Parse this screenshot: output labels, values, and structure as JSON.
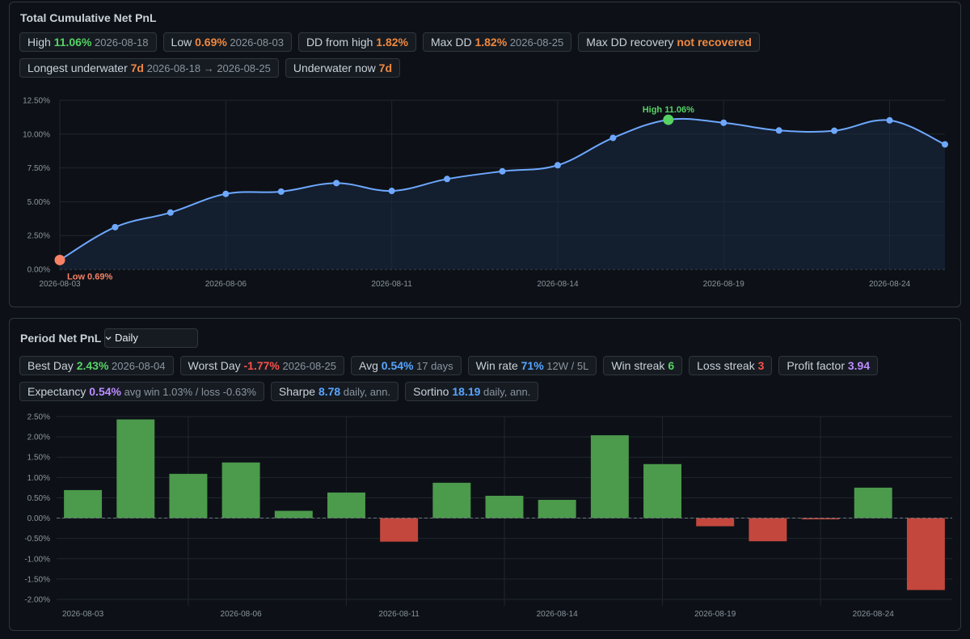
{
  "cumulative": {
    "title": "Total Cumulative Net PnL",
    "chips_row1": [
      {
        "label": "High",
        "value": "11.06%",
        "color": "g",
        "sub": "2026-08-18"
      },
      {
        "label": "Low",
        "value": "0.69%",
        "color": "o",
        "sub": "2026-08-03"
      },
      {
        "label": "DD from high",
        "value": "1.82%",
        "color": "o",
        "sub": ""
      },
      {
        "label": "Max DD",
        "value": "1.82%",
        "color": "o",
        "sub": "2026-08-25"
      },
      {
        "label": "Max DD recovery",
        "value": "not recovered",
        "color": "o",
        "sub": ""
      }
    ],
    "chips_row2": [
      {
        "label": "Longest underwater",
        "value": "7d",
        "color": "o",
        "sub": "2026-08-18 → 2026-08-25"
      },
      {
        "label": "Underwater now",
        "value": "7d",
        "color": "o",
        "sub": ""
      }
    ],
    "high_annotation": "High 11.06%",
    "low_annotation": "Low 0.69%"
  },
  "period": {
    "title": "Period Net PnL",
    "period_select": "Daily",
    "chips_row1": [
      {
        "label": "Best Day",
        "value": "2.43%",
        "color": "g",
        "sub": "2026-08-04"
      },
      {
        "label": "Worst Day",
        "value": "-1.77%",
        "color": "r",
        "sub": "2026-08-25"
      },
      {
        "label": "Avg",
        "value": "0.54%",
        "color": "b",
        "sub": "17 days"
      },
      {
        "label": "Win rate",
        "value": "71%",
        "color": "b",
        "sub": "12W / 5L"
      },
      {
        "label": "Win streak",
        "value": "6",
        "color": "g",
        "sub": ""
      },
      {
        "label": "Loss streak",
        "value": "3",
        "color": "r",
        "sub": ""
      },
      {
        "label": "Profit factor",
        "value": "3.94",
        "color": "p",
        "sub": ""
      }
    ],
    "chips_row2": [
      {
        "label": "Expectancy",
        "value": "0.54%",
        "color": "p",
        "sub": "avg win 1.03% / loss -0.63%"
      },
      {
        "label": "Sharpe",
        "value": "8.78",
        "color": "b",
        "sub": "daily, ann."
      },
      {
        "label": "Sortino",
        "value": "18.19",
        "color": "b",
        "sub": "daily, ann."
      }
    ]
  },
  "colors": {
    "line": "#6ea8fe",
    "high_marker": "#56d364",
    "low_marker": "#f78166",
    "bar_positive": "#4c9a4c",
    "bar_negative": "#c4473d",
    "grid": "#21262d",
    "tick": "#8b949e"
  },
  "chart_data": [
    {
      "type": "line",
      "x": [
        "2026-08-03",
        "2026-08-04",
        "2026-08-05",
        "2026-08-06",
        "2026-08-07",
        "2026-08-10",
        "2026-08-11",
        "2026-08-12",
        "2026-08-13",
        "2026-08-14",
        "2026-08-17",
        "2026-08-18",
        "2026-08-19",
        "2026-08-20",
        "2026-08-21",
        "2026-08-24",
        "2026-08-25"
      ],
      "values": [
        0.69,
        3.12,
        4.2,
        5.58,
        5.75,
        6.38,
        5.8,
        6.68,
        7.25,
        7.7,
        9.72,
        11.06,
        10.84,
        10.27,
        10.25,
        11.02,
        9.24
      ],
      "ylim": [
        0,
        12.5
      ],
      "yticks": [
        "0.00%",
        "2.50%",
        "5.00%",
        "7.50%",
        "10.00%",
        "12.50%"
      ],
      "xtick_labels": [
        "2026-08-03",
        "2026-08-06",
        "2026-08-11",
        "2026-08-14",
        "2026-08-19",
        "2026-08-24"
      ],
      "xtick_indices": [
        0,
        3,
        6,
        9,
        12,
        15
      ],
      "grid": true,
      "fill": true
    },
    {
      "type": "bar",
      "x": [
        "2026-08-03",
        "2026-08-04",
        "2026-08-05",
        "2026-08-06",
        "2026-08-07",
        "2026-08-10",
        "2026-08-11",
        "2026-08-12",
        "2026-08-13",
        "2026-08-14",
        "2026-08-17",
        "2026-08-18",
        "2026-08-19",
        "2026-08-20",
        "2026-08-21",
        "2026-08-24",
        "2026-08-25"
      ],
      "values": [
        0.69,
        2.43,
        1.09,
        1.37,
        0.18,
        0.63,
        -0.58,
        0.87,
        0.55,
        0.45,
        2.04,
        1.33,
        -0.2,
        -0.57,
        -0.03,
        0.75,
        -1.77
      ],
      "ylim": [
        -2.0,
        2.5
      ],
      "yticks": [
        "-2.00%",
        "-1.50%",
        "-1.00%",
        "-0.50%",
        "0.00%",
        "0.50%",
        "1.00%",
        "1.50%",
        "2.00%",
        "2.50%"
      ],
      "xtick_labels": [
        "2026-08-03",
        "2026-08-06",
        "2026-08-11",
        "2026-08-14",
        "2026-08-19",
        "2026-08-24"
      ],
      "xtick_indices": [
        0,
        3,
        6,
        9,
        12,
        15
      ],
      "grid": true
    }
  ]
}
